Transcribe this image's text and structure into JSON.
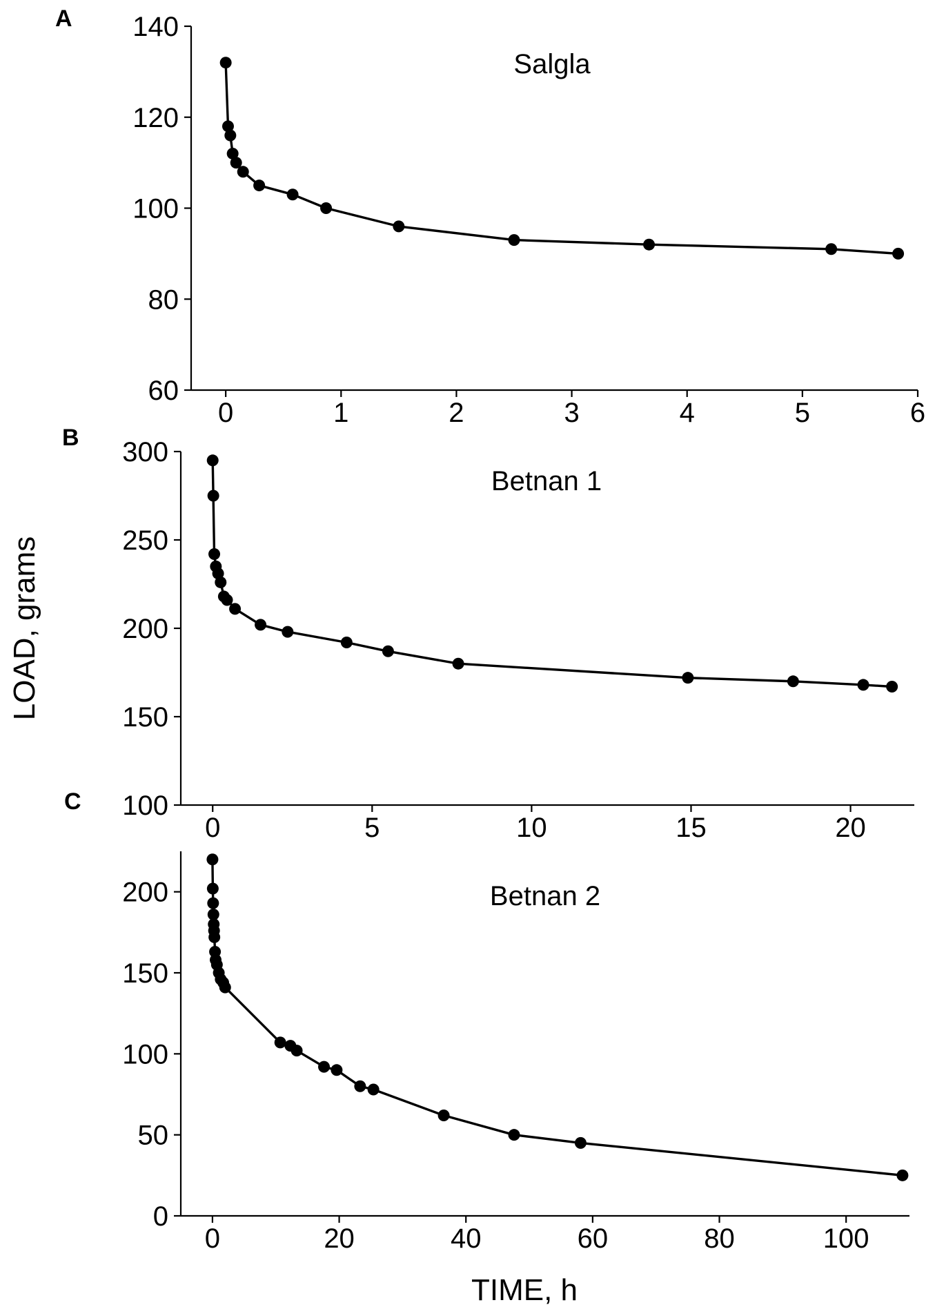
{
  "figure": {
    "ylabel": "LOAD, grams",
    "xlabel": "TIME, h"
  },
  "chart_data": [
    {
      "type": "line",
      "panel_label": "A",
      "title": "Salgla",
      "xlim": [
        -0.3,
        6
      ],
      "ylim": [
        60,
        140
      ],
      "xticks": [
        0,
        1,
        2,
        3,
        4,
        5,
        6
      ],
      "yticks": [
        60,
        80,
        100,
        120,
        140
      ],
      "marker_color": "#000000",
      "x": [
        0.0,
        0.02,
        0.04,
        0.06,
        0.09,
        0.15,
        0.29,
        0.58,
        0.87,
        1.5,
        2.5,
        3.67,
        5.25,
        5.83
      ],
      "y": [
        132,
        118,
        116,
        112,
        110,
        108,
        105,
        103,
        100,
        96,
        93,
        92,
        91,
        90
      ]
    },
    {
      "type": "line",
      "panel_label": "B",
      "title": "Betnan 1",
      "xlim": [
        -1,
        22
      ],
      "ylim": [
        100,
        300
      ],
      "xticks": [
        0,
        5,
        10,
        15,
        20
      ],
      "yticks": [
        100,
        150,
        200,
        250,
        300
      ],
      "marker_color": "#000000",
      "x": [
        0.0,
        0.02,
        0.05,
        0.1,
        0.17,
        0.25,
        0.35,
        0.45,
        0.7,
        1.5,
        2.35,
        4.2,
        5.5,
        7.7,
        14.9,
        18.2,
        20.4,
        21.3
      ],
      "y": [
        295,
        275,
        242,
        235,
        231,
        226,
        218,
        216,
        211,
        202,
        198,
        192,
        187,
        180,
        172,
        170,
        168,
        167
      ]
    },
    {
      "type": "line",
      "panel_label": "C",
      "title": "Betnan 2",
      "xlim": [
        -5,
        110
      ],
      "ylim": [
        0,
        225
      ],
      "xticks": [
        0,
        20,
        40,
        60,
        80,
        100
      ],
      "yticks": [
        0,
        50,
        100,
        150,
        200
      ],
      "marker_color": "#000000",
      "x": [
        0.0,
        0.05,
        0.1,
        0.15,
        0.2,
        0.25,
        0.3,
        0.4,
        0.5,
        0.7,
        1.0,
        1.3,
        1.7,
        2.0,
        10.7,
        12.3,
        13.3,
        17.6,
        19.6,
        23.3,
        25.4,
        36.5,
        47.6,
        58.1,
        108.9
      ],
      "y": [
        220,
        202,
        193,
        186,
        180,
        176,
        172,
        163,
        158,
        155,
        150,
        146,
        144,
        141,
        107,
        105,
        102,
        92,
        90,
        80,
        78,
        62,
        50,
        45,
        25
      ]
    }
  ]
}
